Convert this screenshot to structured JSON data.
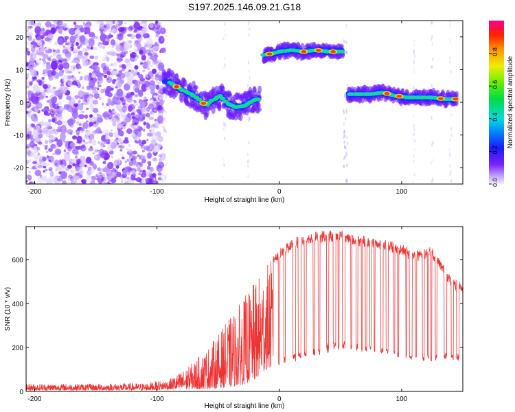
{
  "title": "S197.2025.146.09.21.G18",
  "chart_data": [
    {
      "type": "heatmap",
      "xlabel": "Height of straight line (km)",
      "ylabel": "Frequency (Hz)",
      "xlim": [
        -207,
        150
      ],
      "ylim": [
        -25,
        25
      ],
      "xticks": [
        -200,
        -100,
        0,
        100
      ],
      "yticks": [
        -20,
        -10,
        0,
        10,
        20
      ],
      "colorbar": {
        "label": "Normalized spectral amplitude",
        "range": [
          0,
          1
        ],
        "ticks": [
          "0.0",
          "0.2",
          "0.4",
          "0.6",
          "0.8"
        ]
      },
      "ridge": [
        {
          "x": -95,
          "y": 7
        },
        {
          "x": -85,
          "y": 5
        },
        {
          "x": -78,
          "y": 3.5
        },
        {
          "x": -72,
          "y": 2.5
        },
        {
          "x": -66,
          "y": 1
        },
        {
          "x": -60,
          "y": -1
        },
        {
          "x": -55,
          "y": 0.5
        },
        {
          "x": -48,
          "y": 2
        },
        {
          "x": -42,
          "y": -0.5
        },
        {
          "x": -35,
          "y": -1.5
        },
        {
          "x": -28,
          "y": -1
        },
        {
          "x": -22,
          "y": 0.5
        },
        {
          "x": -17,
          "y": 1
        },
        {
          "x": -12,
          "y": 14.5
        },
        {
          "x": -5,
          "y": 15
        },
        {
          "x": 0,
          "y": 15.5
        },
        {
          "x": 10,
          "y": 16
        },
        {
          "x": 20,
          "y": 15.5
        },
        {
          "x": 30,
          "y": 16
        },
        {
          "x": 40,
          "y": 15.5
        },
        {
          "x": 50,
          "y": 15.5
        },
        {
          "x": 57,
          "y": 2.5
        },
        {
          "x": 65,
          "y": 2.5
        },
        {
          "x": 75,
          "y": 2.5
        },
        {
          "x": 85,
          "y": 3
        },
        {
          "x": 95,
          "y": 2
        },
        {
          "x": 105,
          "y": 1.5
        },
        {
          "x": 115,
          "y": 1.5
        },
        {
          "x": 125,
          "y": 1.5
        },
        {
          "x": 135,
          "y": 1
        },
        {
          "x": 145,
          "y": 1
        }
      ]
    },
    {
      "type": "line",
      "xlabel": "Height of straight line (km)",
      "ylabel": "SNR (10 * v/v)",
      "xlim": [
        -207,
        150
      ],
      "ylim": [
        0,
        750
      ],
      "xticks": [
        -200,
        -100,
        0,
        100
      ],
      "yticks": [
        0,
        200,
        400,
        600
      ],
      "series": [
        {
          "color": "#ee3333",
          "envelope": [
            {
              "x": -207,
              "low": 5,
              "high": 35
            },
            {
              "x": -150,
              "low": 5,
              "high": 35
            },
            {
              "x": -110,
              "low": 5,
              "high": 38
            },
            {
              "x": -90,
              "low": 8,
              "high": 55
            },
            {
              "x": -75,
              "low": 10,
              "high": 110
            },
            {
              "x": -60,
              "low": 10,
              "high": 190
            },
            {
              "x": -50,
              "low": 15,
              "high": 260
            },
            {
              "x": -40,
              "low": 20,
              "high": 340
            },
            {
              "x": -30,
              "low": 30,
              "high": 420
            },
            {
              "x": -20,
              "low": 50,
              "high": 500
            },
            {
              "x": -10,
              "low": 100,
              "high": 580
            },
            {
              "x": 0,
              "low": 120,
              "high": 640
            },
            {
              "x": 10,
              "low": 140,
              "high": 690
            },
            {
              "x": 30,
              "low": 170,
              "high": 720
            },
            {
              "x": 50,
              "low": 200,
              "high": 730
            },
            {
              "x": 70,
              "low": 180,
              "high": 700
            },
            {
              "x": 90,
              "low": 170,
              "high": 680
            },
            {
              "x": 110,
              "low": 140,
              "high": 640
            },
            {
              "x": 125,
              "low": 140,
              "high": 650
            },
            {
              "x": 140,
              "low": 150,
              "high": 520
            },
            {
              "x": 150,
              "low": 140,
              "high": 480
            }
          ]
        }
      ]
    }
  ]
}
